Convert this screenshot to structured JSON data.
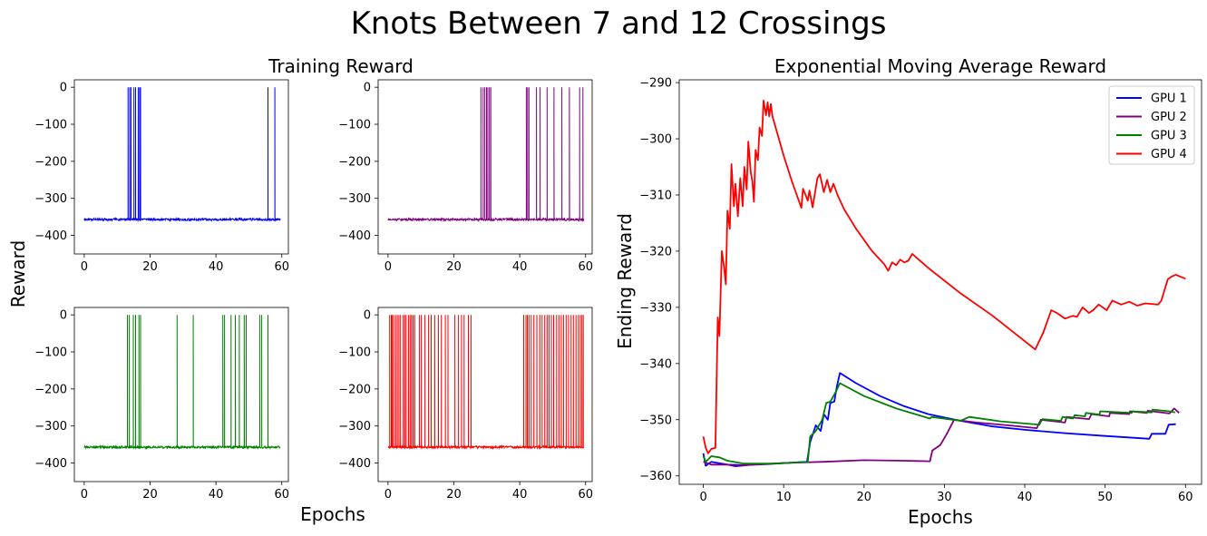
{
  "figure": {
    "title": "Knots Between 7 and 12 Crossings",
    "left_title": "Training Reward",
    "left_ylabel": "Reward",
    "left_xlabel": "Epochs"
  },
  "colors": {
    "gpu1": "#0000ff",
    "gpu2": "#800080",
    "gpu3": "#008000",
    "gpu4": "#ff0000"
  },
  "chart_data": [
    {
      "type": "line",
      "panel": "training-gpu1",
      "color": "#0000ff",
      "xlim": [
        -3,
        62
      ],
      "ylim": [
        -450,
        20
      ],
      "xticks": [
        0,
        20,
        40,
        60
      ],
      "yticks": [
        0,
        -100,
        -200,
        -300,
        -400
      ],
      "baseline": -357,
      "spikes_x": [
        13.3,
        13.8,
        14.2,
        15.1,
        15.6,
        16.4,
        16.8,
        17.1,
        55.8,
        57.9
      ]
    },
    {
      "type": "line",
      "panel": "training-gpu2",
      "color": "#800080",
      "xlim": [
        -3,
        62
      ],
      "ylim": [
        -450,
        20
      ],
      "xticks": [
        0,
        20,
        40,
        60
      ],
      "yticks": [
        0,
        -100,
        -200,
        -300,
        -400
      ],
      "baseline": -357,
      "spikes_x": [
        28.2,
        28.9,
        29.4,
        29.9,
        30.3,
        30.8,
        31.2,
        42.0,
        42.4,
        42.8,
        45.1,
        46.2,
        48.3,
        50.4,
        52.8,
        55.1,
        58.2,
        59.2
      ]
    },
    {
      "type": "line",
      "panel": "training-gpu3",
      "color": "#008000",
      "xlim": [
        -3,
        62
      ],
      "ylim": [
        -450,
        20
      ],
      "xticks": [
        0,
        20,
        40,
        60
      ],
      "yticks": [
        0,
        -100,
        -200,
        -300,
        -400
      ],
      "baseline": -357,
      "spikes_x": [
        13.1,
        13.7,
        14.9,
        15.6,
        16.6,
        17.1,
        28.2,
        33.1,
        42.1,
        42.6,
        44.6,
        45.9,
        47.1,
        48.6,
        49.2,
        53.3,
        53.9,
        55.8
      ]
    },
    {
      "type": "line",
      "panel": "training-gpu4",
      "color": "#ff0000",
      "xlim": [
        -3,
        62
      ],
      "ylim": [
        -450,
        20
      ],
      "xticks": [
        0,
        20,
        40,
        60
      ],
      "yticks": [
        0,
        -100,
        -200,
        -300,
        -400
      ],
      "baseline": -357,
      "spikes_x": [
        0.5,
        1.0,
        1.3,
        1.7,
        2.3,
        2.8,
        3.3,
        3.8,
        4.6,
        5.1,
        5.5,
        6.2,
        6.7,
        7.1,
        7.6,
        8.1,
        9.5,
        10.1,
        11.2,
        12.3,
        13.1,
        14.2,
        15.3,
        16.2,
        17.4,
        18.2,
        20.3,
        21.4,
        22.3,
        23.1,
        24.4,
        25.2,
        41.2,
        41.9,
        42.3,
        42.8,
        43.5,
        44.3,
        45.2,
        46.1,
        46.8,
        47.6,
        48.3,
        48.9,
        49.6,
        50.3,
        51.2,
        51.9,
        52.6,
        53.3,
        54.1,
        54.8,
        55.6,
        56.3,
        57.1,
        57.8,
        58.4,
        58.9,
        59.3,
        59.8
      ]
    },
    {
      "type": "line",
      "panel": "ema",
      "title": "Exponential Moving Average Reward",
      "xlabel": "Epochs",
      "ylabel": "Ending Reward",
      "xlim": [
        -3,
        62
      ],
      "ylim": [
        -361.5,
        -289.5
      ],
      "xticks": [
        0,
        10,
        20,
        30,
        40,
        50,
        60
      ],
      "yticks": [
        -290,
        -300,
        -310,
        -320,
        -330,
        -340,
        -350,
        -360
      ],
      "legend": "top-right",
      "series": [
        {
          "name": "GPU 1",
          "color": "#0000ff",
          "points": [
            [
              0,
              -356
            ],
            [
              0.3,
              -358.2
            ],
            [
              1,
              -357.5
            ],
            [
              3,
              -358
            ],
            [
              5,
              -358.1
            ],
            [
              8,
              -357.9
            ],
            [
              12.9,
              -357.5
            ],
            [
              13.3,
              -354
            ],
            [
              14,
              -351
            ],
            [
              14.6,
              -352
            ],
            [
              15,
              -349
            ],
            [
              15.5,
              -350
            ],
            [
              15.8,
              -347
            ],
            [
              16.3,
              -346.8
            ],
            [
              16.6,
              -344.2
            ],
            [
              17.0,
              -341.7
            ],
            [
              19,
              -343.5
            ],
            [
              22,
              -345.8
            ],
            [
              25,
              -347.6
            ],
            [
              28,
              -349
            ],
            [
              32,
              -350.2
            ],
            [
              36,
              -351.2
            ],
            [
              40,
              -351.8
            ],
            [
              45,
              -352.4
            ],
            [
              50,
              -352.9
            ],
            [
              55.5,
              -353.4
            ],
            [
              55.8,
              -352.5
            ],
            [
              57.5,
              -352.5
            ],
            [
              57.9,
              -350.9
            ],
            [
              58.8,
              -350.8
            ]
          ]
        },
        {
          "name": "GPU 2",
          "color": "#800080",
          "points": [
            [
              0,
              -357.5
            ],
            [
              1,
              -358
            ],
            [
              3,
              -358
            ],
            [
              4,
              -358.3
            ],
            [
              6,
              -358
            ],
            [
              10,
              -357.7
            ],
            [
              15,
              -357.5
            ],
            [
              20,
              -357.2
            ],
            [
              25,
              -357.3
            ],
            [
              28.2,
              -357.4
            ],
            [
              28.5,
              -355.5
            ],
            [
              29.5,
              -354.5
            ],
            [
              30.3,
              -352.5
            ],
            [
              31.2,
              -350
            ],
            [
              34,
              -350.5
            ],
            [
              38,
              -351
            ],
            [
              41.5,
              -351.5
            ],
            [
              42,
              -350
            ],
            [
              45,
              -350.5
            ],
            [
              45.2,
              -349.5
            ],
            [
              48,
              -349.9
            ],
            [
              48.3,
              -349
            ],
            [
              50.5,
              -349.4
            ],
            [
              50.6,
              -348.8
            ],
            [
              53,
              -349
            ],
            [
              53.1,
              -348.5
            ],
            [
              55.2,
              -348.8
            ],
            [
              55.3,
              -348.4
            ],
            [
              58,
              -348.9
            ],
            [
              58.6,
              -348
            ],
            [
              59.2,
              -348.8
            ]
          ]
        },
        {
          "name": "GPU 3",
          "color": "#008000",
          "points": [
            [
              0,
              -356.5
            ],
            [
              0.3,
              -357.5
            ],
            [
              1,
              -356.5
            ],
            [
              2,
              -356.7
            ],
            [
              3,
              -357.3
            ],
            [
              5,
              -357.8
            ],
            [
              9,
              -357.8
            ],
            [
              13,
              -357.5
            ],
            [
              13.3,
              -353
            ],
            [
              14,
              -352
            ],
            [
              14.8,
              -350
            ],
            [
              15.3,
              -347
            ],
            [
              15.8,
              -346.8
            ],
            [
              16.5,
              -345
            ],
            [
              17.0,
              -343.5
            ],
            [
              20,
              -345.8
            ],
            [
              24,
              -348
            ],
            [
              28.2,
              -349.8
            ],
            [
              28.4,
              -349.5
            ],
            [
              32,
              -350.2
            ],
            [
              33.1,
              -349.5
            ],
            [
              37,
              -350.3
            ],
            [
              41.8,
              -350.9
            ],
            [
              42.2,
              -349.9
            ],
            [
              44.5,
              -350.2
            ],
            [
              44.7,
              -349.5
            ],
            [
              46,
              -349.8
            ],
            [
              46.2,
              -349.2
            ],
            [
              47.5,
              -349.4
            ],
            [
              47.6,
              -348.8
            ],
            [
              49.3,
              -349.1
            ],
            [
              49.4,
              -348.5
            ],
            [
              53.3,
              -348.8
            ],
            [
              53.4,
              -348.5
            ],
            [
              55.8,
              -348.7
            ],
            [
              55.9,
              -348.2
            ],
            [
              58,
              -348.5
            ],
            [
              58.7,
              -348.7
            ]
          ]
        },
        {
          "name": "GPU 4",
          "color": "#ff0000",
          "points": [
            [
              0,
              -353
            ],
            [
              0.3,
              -355
            ],
            [
              0.6,
              -356
            ],
            [
              1.0,
              -355.2
            ],
            [
              1.5,
              -355
            ],
            [
              1.8,
              -331.8
            ],
            [
              2.0,
              -335.1
            ],
            [
              2.3,
              -320
            ],
            [
              2.6,
              -323
            ],
            [
              2.8,
              -325.9
            ],
            [
              3.0,
              -312.8
            ],
            [
              3.3,
              -316
            ],
            [
              3.5,
              -304.5
            ],
            [
              3.8,
              -312
            ],
            [
              4.0,
              -308
            ],
            [
              4.3,
              -313.8
            ],
            [
              4.6,
              -307
            ],
            [
              4.9,
              -312
            ],
            [
              5.1,
              -305
            ],
            [
              5.4,
              -309
            ],
            [
              5.6,
              -300.5
            ],
            [
              5.9,
              -306
            ],
            [
              6.1,
              -307.5
            ],
            [
              6.3,
              -311.2
            ],
            [
              6.5,
              -302
            ],
            [
              6.8,
              -303.8
            ],
            [
              7.0,
              -298
            ],
            [
              7.3,
              -299.5
            ],
            [
              7.5,
              -293.2
            ],
            [
              7.8,
              -295.8
            ],
            [
              8.0,
              -293.5
            ],
            [
              8.2,
              -296
            ],
            [
              8.4,
              -293.8
            ],
            [
              8.6,
              -296
            ],
            [
              10,
              -303
            ],
            [
              11,
              -307.5
            ],
            [
              12.2,
              -312.3
            ],
            [
              12.4,
              -308.9
            ],
            [
              13,
              -311
            ],
            [
              13.2,
              -309.2
            ],
            [
              13.6,
              -312.2
            ],
            [
              14.2,
              -307
            ],
            [
              14.5,
              -306.3
            ],
            [
              15,
              -309.5
            ],
            [
              15.4,
              -307.3
            ],
            [
              15.8,
              -309.5
            ],
            [
              16.2,
              -308
            ],
            [
              16.7,
              -310
            ],
            [
              17.5,
              -312.5
            ],
            [
              19,
              -316
            ],
            [
              20.5,
              -319
            ],
            [
              21,
              -320
            ],
            [
              22.5,
              -322.3
            ],
            [
              23,
              -323.5
            ],
            [
              23.5,
              -322
            ],
            [
              24,
              -322.5
            ],
            [
              24.5,
              -321.5
            ],
            [
              25,
              -322
            ],
            [
              25.5,
              -321.7
            ],
            [
              26,
              -320.5
            ],
            [
              28,
              -323
            ],
            [
              32,
              -327.5
            ],
            [
              36,
              -331.5
            ],
            [
              41.3,
              -337.5
            ],
            [
              41.8,
              -336
            ],
            [
              42.3,
              -334.5
            ],
            [
              43.3,
              -330.5
            ],
            [
              44,
              -331
            ],
            [
              45,
              -332
            ],
            [
              46,
              -331.5
            ],
            [
              46.5,
              -331.7
            ],
            [
              47.2,
              -330
            ],
            [
              48,
              -331
            ],
            [
              48.5,
              -330.5
            ],
            [
              49.2,
              -329.5
            ],
            [
              50.2,
              -330.5
            ],
            [
              50.9,
              -328.8
            ],
            [
              52,
              -329.5
            ],
            [
              53,
              -329
            ],
            [
              54,
              -329.7
            ],
            [
              55,
              -329.3
            ],
            [
              56.6,
              -329.5
            ],
            [
              57,
              -328.8
            ],
            [
              57.3,
              -327.3
            ],
            [
              57.8,
              -325
            ],
            [
              58.3,
              -324.5
            ],
            [
              58.8,
              -324.2
            ],
            [
              59.3,
              -324.5
            ],
            [
              60,
              -324.9
            ]
          ]
        }
      ]
    }
  ]
}
